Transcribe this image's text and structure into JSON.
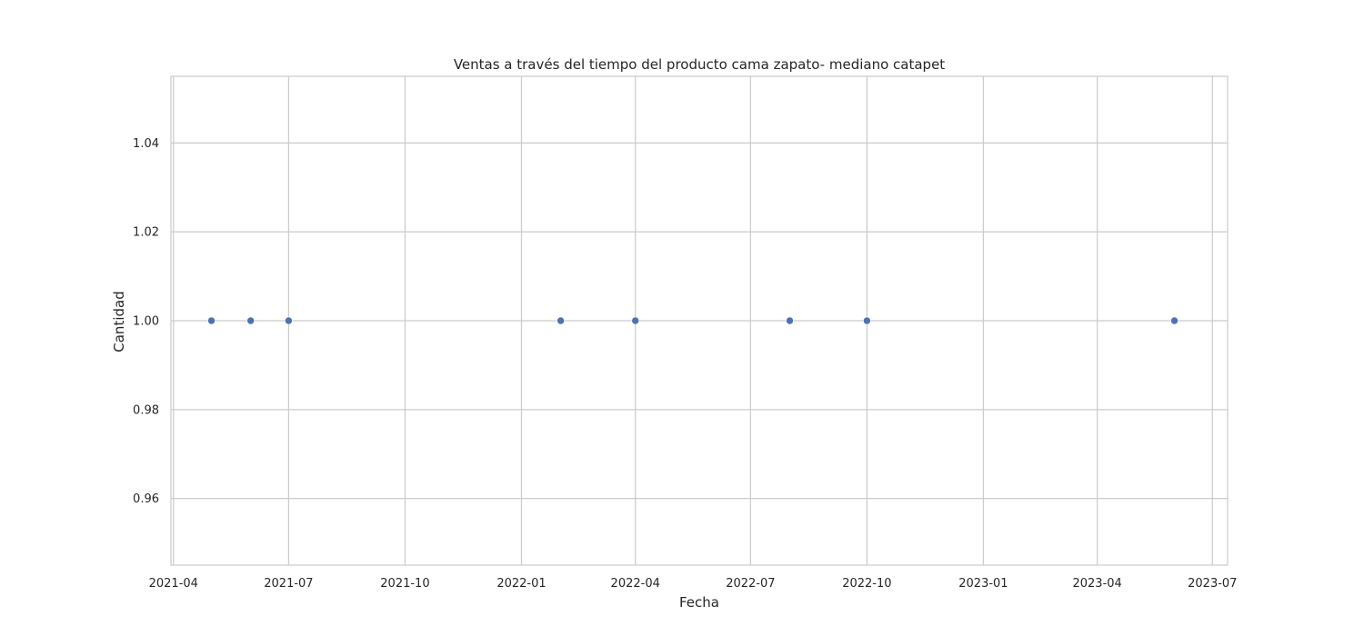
{
  "chart_data": {
    "type": "scatter",
    "title": "Ventas a través del tiempo del producto cama zapato- mediano catapet",
    "xlabel": "Fecha",
    "ylabel": "Cantidad",
    "xlim": [
      "2021-03-30",
      "2023-07-13"
    ],
    "ylim": [
      0.945,
      1.055
    ],
    "x_ticks": [
      "2021-04-01",
      "2021-07-01",
      "2021-10-01",
      "2022-01-01",
      "2022-04-01",
      "2022-07-01",
      "2022-10-01",
      "2023-01-01",
      "2023-04-01",
      "2023-07-01"
    ],
    "x_tick_labels": [
      "2021-04",
      "2021-07",
      "2021-10",
      "2022-01",
      "2022-04",
      "2022-07",
      "2022-10",
      "2023-01",
      "2023-04",
      "2023-07"
    ],
    "y_ticks": [
      0.96,
      0.98,
      1.0,
      1.02,
      1.04
    ],
    "y_tick_labels": [
      "0.96",
      "0.98",
      "1.00",
      "1.02",
      "1.04"
    ],
    "grid": true,
    "points": [
      {
        "x": "2021-05-01",
        "y": 1.0
      },
      {
        "x": "2021-06-01",
        "y": 1.0
      },
      {
        "x": "2021-07-01",
        "y": 1.0
      },
      {
        "x": "2022-02-01",
        "y": 1.0
      },
      {
        "x": "2022-04-01",
        "y": 1.0
      },
      {
        "x": "2022-08-01",
        "y": 1.0
      },
      {
        "x": "2022-10-01",
        "y": 1.0
      },
      {
        "x": "2023-06-01",
        "y": 1.0
      }
    ],
    "colors": {
      "marker": "#4c72b0",
      "grid": "#cccccc",
      "spine": "#cccccc",
      "text": "#262626"
    }
  }
}
